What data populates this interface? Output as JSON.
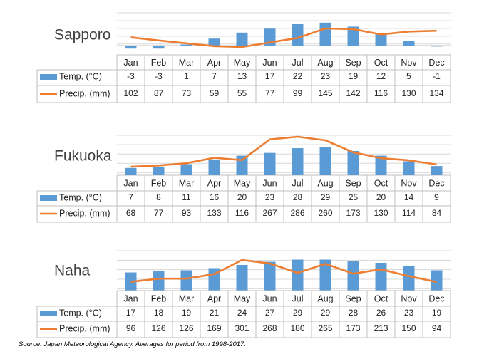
{
  "months": [
    "Jan",
    "Feb",
    "Mar",
    "Apr",
    "May",
    "Jun",
    "Jul",
    "Aug",
    "Sep",
    "Oct",
    "Nov",
    "Dec"
  ],
  "legend": {
    "temp": "Temp. (°C)",
    "precip": "Precip. (mm)"
  },
  "colors": {
    "bar": "#5B9BD5",
    "line": "#ED7D31",
    "grid": "#D9D9D9",
    "table_border": "#BFBFBF"
  },
  "source": "Source: Japan Meteorological Agency. Averages for period from 1998-2017.",
  "chart_data": [
    {
      "type": "bar+line",
      "title": "Sapporo",
      "categories": [
        "Jan",
        "Feb",
        "Mar",
        "Apr",
        "May",
        "Jun",
        "Jul",
        "Aug",
        "Sep",
        "Oct",
        "Nov",
        "Dec"
      ],
      "series": [
        {
          "name": "Temp. (°C)",
          "kind": "bar",
          "values": [
            -3,
            -3,
            1,
            7,
            13,
            17,
            22,
            23,
            19,
            12,
            5,
            -1
          ]
        },
        {
          "name": "Precip. (mm)",
          "kind": "line",
          "values": [
            102,
            87,
            73,
            59,
            55,
            77,
            99,
            145,
            142,
            116,
            130,
            134
          ]
        }
      ]
    },
    {
      "type": "bar+line",
      "title": "Fukuoka",
      "categories": [
        "Jan",
        "Feb",
        "Mar",
        "Apr",
        "May",
        "Jun",
        "Jul",
        "Aug",
        "Sep",
        "Oct",
        "Nov",
        "Dec"
      ],
      "series": [
        {
          "name": "Temp. (°C)",
          "kind": "bar",
          "values": [
            7,
            8,
            11,
            16,
            20,
            23,
            28,
            29,
            25,
            20,
            14,
            9
          ]
        },
        {
          "name": "Precip. (mm)",
          "kind": "line",
          "values": [
            68,
            77,
            93,
            133,
            116,
            267,
            286,
            260,
            173,
            130,
            114,
            84
          ]
        }
      ]
    },
    {
      "type": "bar+line",
      "title": "Naha",
      "categories": [
        "Jan",
        "Feb",
        "Mar",
        "Apr",
        "May",
        "Jun",
        "Jul",
        "Aug",
        "Sep",
        "Oct",
        "Nov",
        "Dec"
      ],
      "series": [
        {
          "name": "Temp. (°C)",
          "kind": "bar",
          "values": [
            17,
            18,
            19,
            21,
            24,
            27,
            29,
            29,
            28,
            26,
            23,
            19
          ]
        },
        {
          "name": "Precip. (mm)",
          "kind": "line",
          "values": [
            96,
            126,
            126,
            169,
            301,
            268,
            180,
            265,
            173,
            213,
            150,
            94
          ]
        }
      ]
    }
  ]
}
